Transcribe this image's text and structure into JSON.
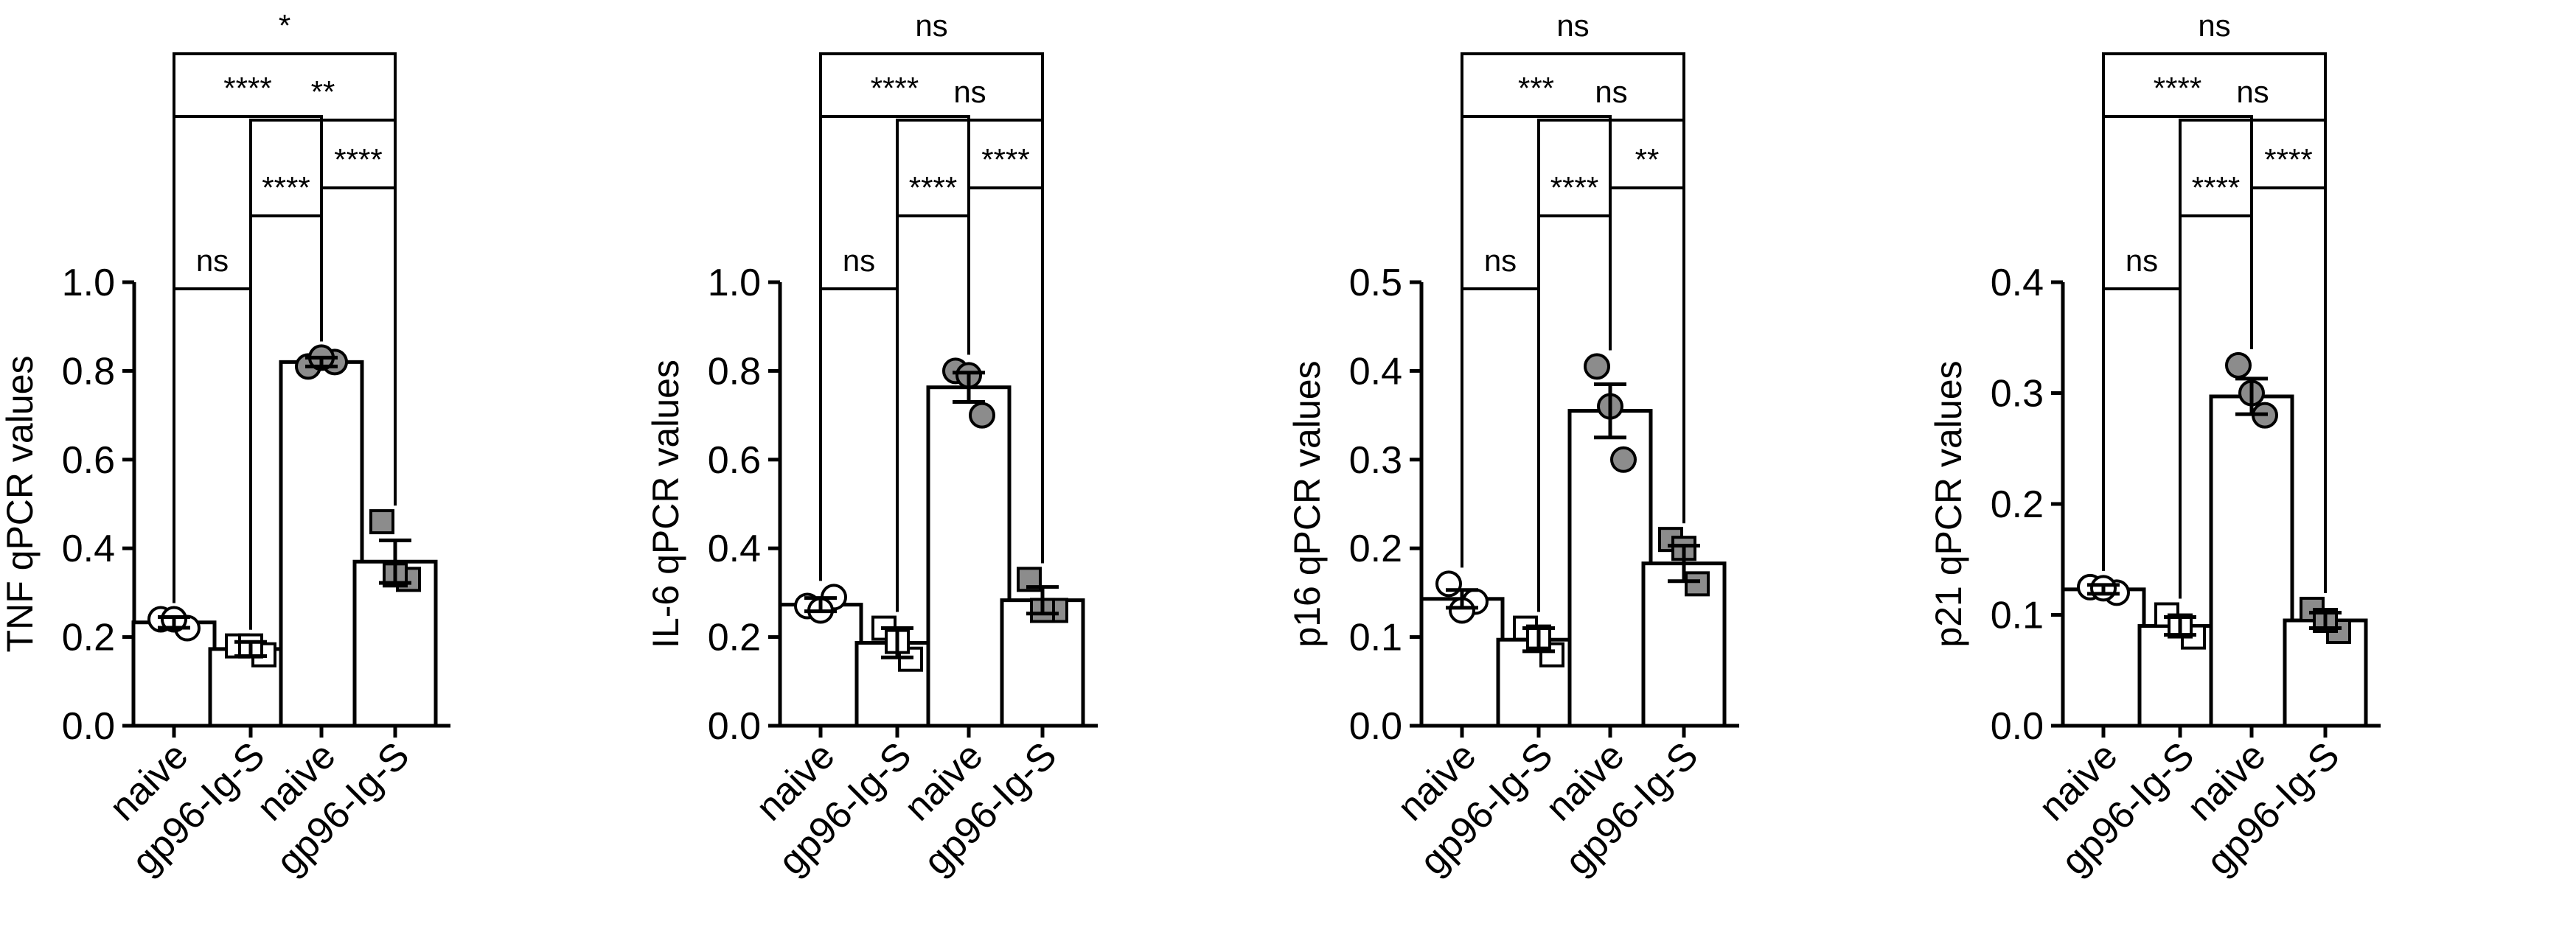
{
  "chart_data": [
    {
      "type": "bar",
      "title": "",
      "ylabel": "TNF qPCR values",
      "ylim": [
        0,
        1.0
      ],
      "yticks": [
        "0.0",
        "0.2",
        "0.4",
        "0.6",
        "0.8",
        "1.0"
      ],
      "categories": [
        "naive",
        "gp96-Ig-S",
        "naive",
        "gp96-Ig-S"
      ],
      "values": [
        0.233,
        0.173,
        0.82,
        0.37
      ],
      "errors": [
        0.012,
        0.016,
        0.01,
        0.048
      ],
      "points": [
        [
          0.24,
          0.22,
          0.24
        ],
        [
          0.18,
          0.16,
          0.18
        ],
        [
          0.81,
          0.82,
          0.83
        ],
        [
          0.46,
          0.33,
          0.34
        ]
      ],
      "group_style": [
        "open-circle",
        "open-square",
        "filled-circle",
        "filled-square"
      ],
      "comparisons": [
        {
          "a": 0,
          "b": 1,
          "label": "ns"
        },
        {
          "a": 1,
          "b": 2,
          "label": "****"
        },
        {
          "a": 2,
          "b": 3,
          "label": "****"
        },
        {
          "a": 1,
          "b": 3,
          "label": "**"
        },
        {
          "a": 0,
          "b": 2,
          "label": "****"
        },
        {
          "a": 0,
          "b": 3,
          "label": "*"
        }
      ]
    },
    {
      "type": "bar",
      "title": "",
      "ylabel": "IL-6 qPCR values",
      "ylim": [
        0,
        1.0
      ],
      "yticks": [
        "0.0",
        "0.2",
        "0.4",
        "0.6",
        "0.8",
        "1.0"
      ],
      "categories": [
        "naive",
        "gp96-Ig-S",
        "naive",
        "gp96-Ig-S"
      ],
      "values": [
        0.273,
        0.187,
        0.763,
        0.283
      ],
      "errors": [
        0.015,
        0.033,
        0.033,
        0.03
      ],
      "points": [
        [
          0.27,
          0.29,
          0.26
        ],
        [
          0.22,
          0.15,
          0.19
        ],
        [
          0.8,
          0.7,
          0.79
        ],
        [
          0.33,
          0.26,
          0.26
        ]
      ],
      "group_style": [
        "open-circle",
        "open-square",
        "filled-circle",
        "filled-square"
      ],
      "comparisons": [
        {
          "a": 0,
          "b": 1,
          "label": "ns"
        },
        {
          "a": 1,
          "b": 2,
          "label": "****"
        },
        {
          "a": 2,
          "b": 3,
          "label": "****"
        },
        {
          "a": 1,
          "b": 3,
          "label": "ns"
        },
        {
          "a": 0,
          "b": 2,
          "label": "****"
        },
        {
          "a": 0,
          "b": 3,
          "label": "ns"
        }
      ]
    },
    {
      "type": "bar",
      "title": "",
      "ylabel": "p16 qPCR values",
      "ylim": [
        0,
        0.5
      ],
      "yticks": [
        "0.0",
        "0.1",
        "0.2",
        "0.3",
        "0.4",
        "0.5"
      ],
      "categories": [
        "naive",
        "gp96-Ig-S",
        "naive",
        "gp96-Ig-S"
      ],
      "values": [
        0.143,
        0.097,
        0.355,
        0.183
      ],
      "errors": [
        0.01,
        0.013,
        0.03,
        0.02
      ],
      "points": [
        [
          0.16,
          0.14,
          0.13
        ],
        [
          0.11,
          0.08,
          0.1
        ],
        [
          0.405,
          0.3,
          0.36
        ],
        [
          0.21,
          0.16,
          0.2
        ]
      ],
      "group_style": [
        "open-circle",
        "open-square",
        "filled-circle",
        "filled-square"
      ],
      "comparisons": [
        {
          "a": 0,
          "b": 1,
          "label": "ns"
        },
        {
          "a": 1,
          "b": 2,
          "label": "****"
        },
        {
          "a": 2,
          "b": 3,
          "label": "**"
        },
        {
          "a": 1,
          "b": 3,
          "label": "ns"
        },
        {
          "a": 0,
          "b": 2,
          "label": "***"
        },
        {
          "a": 0,
          "b": 3,
          "label": "ns"
        }
      ]
    },
    {
      "type": "bar",
      "title": "",
      "ylabel": "p21 qPCR values",
      "ylim": [
        0,
        0.4
      ],
      "yticks": [
        "0.0",
        "0.1",
        "0.2",
        "0.3",
        "0.4"
      ],
      "categories": [
        "naive",
        "gp96-Ig-S",
        "naive",
        "gp96-Ig-S"
      ],
      "values": [
        0.123,
        0.09,
        0.297,
        0.095
      ],
      "errors": [
        0.004,
        0.008,
        0.016,
        0.007
      ],
      "points": [
        [
          0.125,
          0.12,
          0.124
        ],
        [
          0.1,
          0.08,
          0.09
        ],
        [
          0.325,
          0.28,
          0.3
        ],
        [
          0.105,
          0.085,
          0.095
        ]
      ],
      "group_style": [
        "open-circle",
        "open-square",
        "filled-circle",
        "filled-square"
      ],
      "comparisons": [
        {
          "a": 0,
          "b": 1,
          "label": "ns"
        },
        {
          "a": 1,
          "b": 2,
          "label": "****"
        },
        {
          "a": 2,
          "b": 3,
          "label": "****"
        },
        {
          "a": 1,
          "b": 3,
          "label": "ns"
        },
        {
          "a": 0,
          "b": 2,
          "label": "****"
        },
        {
          "a": 0,
          "b": 3,
          "label": "ns"
        }
      ]
    }
  ],
  "colors": {
    "filled_marker": "#8c8c8c",
    "outline": "#000000",
    "bar_fill": "#ffffff"
  }
}
